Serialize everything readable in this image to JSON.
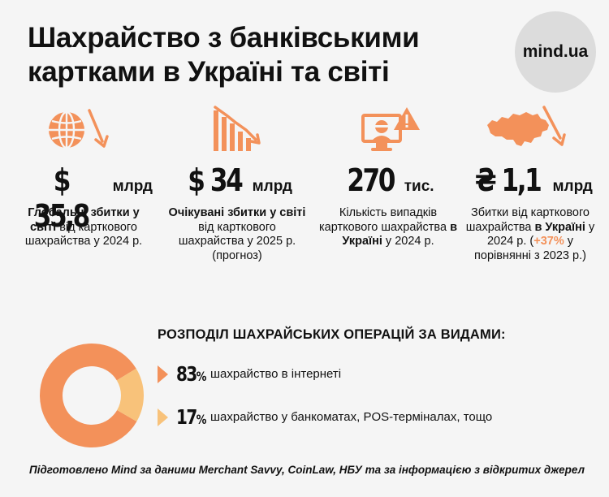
{
  "header": {
    "title_line1": "Шахрайство з банківськими",
    "title_line2": "картками в Україні та світі",
    "logo": "mind.ua"
  },
  "colors": {
    "accent": "#f3915a",
    "accent_light": "#f8c27a",
    "background": "#f5f5f5"
  },
  "stats": [
    {
      "icon": "globe-down-arrow-icon",
      "value": "$ 35,8",
      "unit": "млрд",
      "desc_bold": "Глобальні збитки у світі",
      "desc_rest": " від карткового шахрайства у 2024 р."
    },
    {
      "icon": "bar-chart-down-arrow-icon",
      "value": "$ 34",
      "unit": "млрд",
      "desc_bold": "Очікувані збитки у світі",
      "desc_rest": " від карткового шахрайства у 2025 р. (прогноз)"
    },
    {
      "icon": "hacker-monitor-warning-icon",
      "value": "270",
      "unit": "тис.",
      "desc_pre": "Кількість випадків карткового шахрайства ",
      "desc_bold": "в Україні",
      "desc_rest": " у 2024 р."
    },
    {
      "icon": "ukraine-map-down-arrow-icon",
      "value": "₴ 1,1",
      "unit": "млрд",
      "desc_pre": "Збитки від карткового шахрайства ",
      "desc_bold": "в Україні",
      "desc_mid": " у 2024 р. (",
      "desc_accent": "+37%",
      "desc_rest": " у порівнянні з 2023 р.)"
    }
  ],
  "distribution": {
    "heading": "РОЗПОДІЛ ШАХРАЙСЬКИХ ОПЕРАЦІЙ ЗА ВИДАМИ:",
    "items": [
      {
        "value": "83",
        "unit": "%",
        "label": "шахрайство в інтернеті",
        "color": "#f3915a"
      },
      {
        "value": "17",
        "unit": "%",
        "label": "шахрайство у банкоматах, POS-терміналах, тощо",
        "color": "#f8c27a"
      }
    ]
  },
  "footer": "Підготовлено Mind за даними Merchant Savvy, CoinLaw, НБУ та за інформацією з відкритих джерел"
}
